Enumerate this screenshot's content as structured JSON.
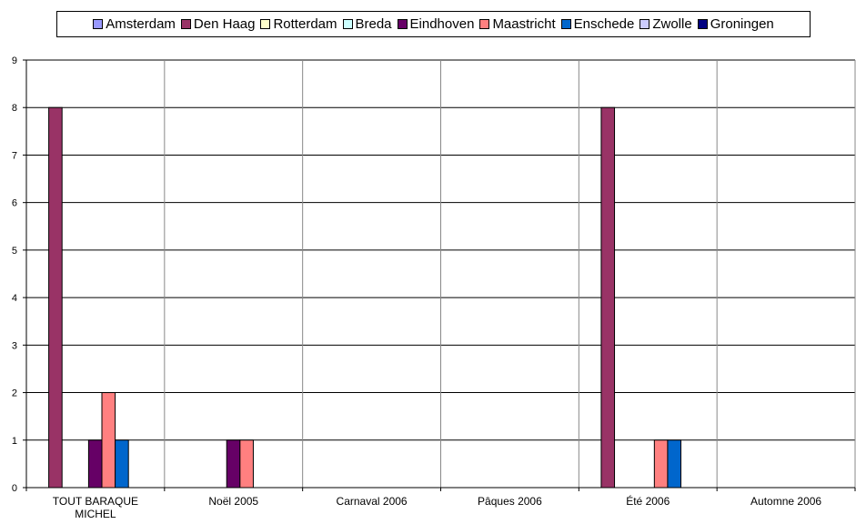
{
  "chart_data": {
    "type": "bar",
    "title": "",
    "xlabel": "",
    "ylabel": "",
    "ylim": [
      0,
      9
    ],
    "yticks": [
      0,
      1,
      2,
      3,
      4,
      5,
      6,
      7,
      8,
      9
    ],
    "grid": true,
    "legend_position": "top",
    "categories": [
      [
        "TOUT BARAQUE",
        "MICHEL"
      ],
      [
        "Noël 2005"
      ],
      [
        "Carnaval 2006"
      ],
      [
        "Pâques 2006"
      ],
      [
        "Été 2006"
      ],
      [
        "Automne 2006"
      ]
    ],
    "series": [
      {
        "name": "Amsterdam",
        "color": "#9999ff",
        "values": [
          0,
          0,
          0,
          0,
          0,
          0
        ]
      },
      {
        "name": "Den Haag",
        "color": "#993366",
        "values": [
          8,
          0,
          0,
          0,
          8,
          0
        ]
      },
      {
        "name": "Rotterdam",
        "color": "#ffffcc",
        "values": [
          0,
          0,
          0,
          0,
          0,
          0
        ]
      },
      {
        "name": "Breda",
        "color": "#ccffff",
        "values": [
          0,
          0,
          0,
          0,
          0,
          0
        ]
      },
      {
        "name": "Eindhoven",
        "color": "#660066",
        "values": [
          1,
          1,
          0,
          0,
          0,
          0
        ]
      },
      {
        "name": "Maastricht",
        "color": "#ff8080",
        "values": [
          2,
          1,
          0,
          0,
          1,
          0
        ]
      },
      {
        "name": "Enschede",
        "color": "#0066cc",
        "values": [
          1,
          0,
          0,
          0,
          1,
          0
        ]
      },
      {
        "name": "Zwolle",
        "color": "#ccccff",
        "values": [
          0,
          0,
          0,
          0,
          0,
          0
        ]
      },
      {
        "name": "Groningen",
        "color": "#000080",
        "values": [
          0,
          0,
          0,
          0,
          0,
          0
        ]
      }
    ]
  }
}
